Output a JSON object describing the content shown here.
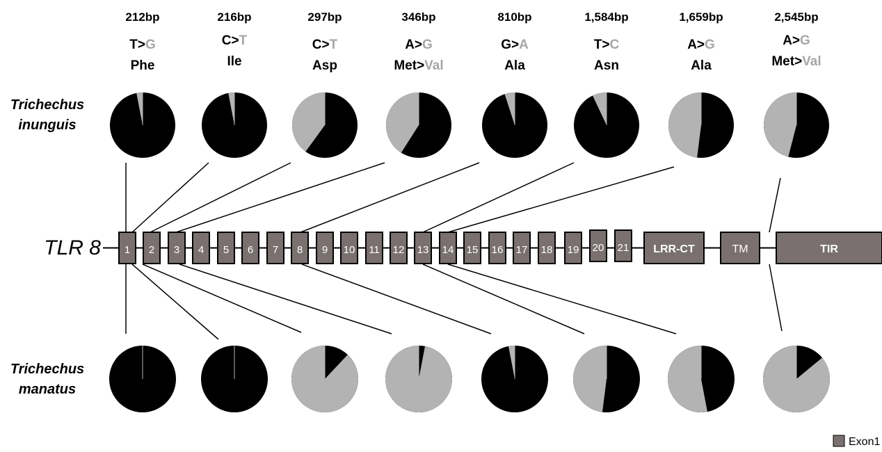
{
  "gene_label": "TLR 8",
  "species": [
    {
      "line1": "Trichechus",
      "line2": "inunguis"
    },
    {
      "line1": "Trichechus",
      "line2": "manatus"
    }
  ],
  "exons": [
    "1",
    "2",
    "3",
    "4",
    "5",
    "6",
    "7",
    "8",
    "9",
    "10",
    "11",
    "12",
    "13",
    "14",
    "15",
    "16",
    "17",
    "18",
    "19",
    "20",
    "21"
  ],
  "domains": [
    "LRR-CT",
    "TM",
    "TIR"
  ],
  "legend": {
    "label": "Exon1"
  },
  "colors": {
    "allele1": "#000000",
    "allele2": "#b3b3b3",
    "box": "#7a7070",
    "line": "#000000"
  },
  "snps": [
    {
      "pos": "212bp",
      "ref": "T",
      "alt": "G",
      "aa_ref": "Phe",
      "aa_alt": "",
      "inunguis_alt": 0.03,
      "manatus_alt": 0.0
    },
    {
      "pos": "216bp",
      "ref": "C",
      "alt": "T",
      "aa_ref": "Ile",
      "aa_alt": "",
      "inunguis_alt": 0.03,
      "manatus_alt": 0.0
    },
    {
      "pos": "297bp",
      "ref": "C",
      "alt": "T",
      "aa_ref": "Asp",
      "aa_alt": "",
      "inunguis_alt": 0.4,
      "manatus_alt": 0.88
    },
    {
      "pos": "346bp",
      "ref": "A",
      "alt": "G",
      "aa_ref": "Met",
      "aa_alt": "Val",
      "inunguis_alt": 0.41,
      "manatus_alt": 0.97
    },
    {
      "pos": "810bp",
      "ref": "G",
      "alt": "A",
      "aa_ref": "Ala",
      "aa_alt": "",
      "inunguis_alt": 0.05,
      "manatus_alt": 0.03
    },
    {
      "pos": "1,584bp",
      "ref": "T",
      "alt": "C",
      "aa_ref": "Asn",
      "aa_alt": "",
      "inunguis_alt": 0.07,
      "manatus_alt": 0.48
    },
    {
      "pos": "1,659bp",
      "ref": "A",
      "alt": "G",
      "aa_ref": "Ala",
      "aa_alt": "",
      "inunguis_alt": 0.48,
      "manatus_alt": 0.53
    },
    {
      "pos": "2,545bp",
      "ref": "A",
      "alt": "G",
      "aa_ref": "Met",
      "aa_alt": "Val",
      "inunguis_alt": 0.46,
      "manatus_alt": 0.86
    }
  ]
}
